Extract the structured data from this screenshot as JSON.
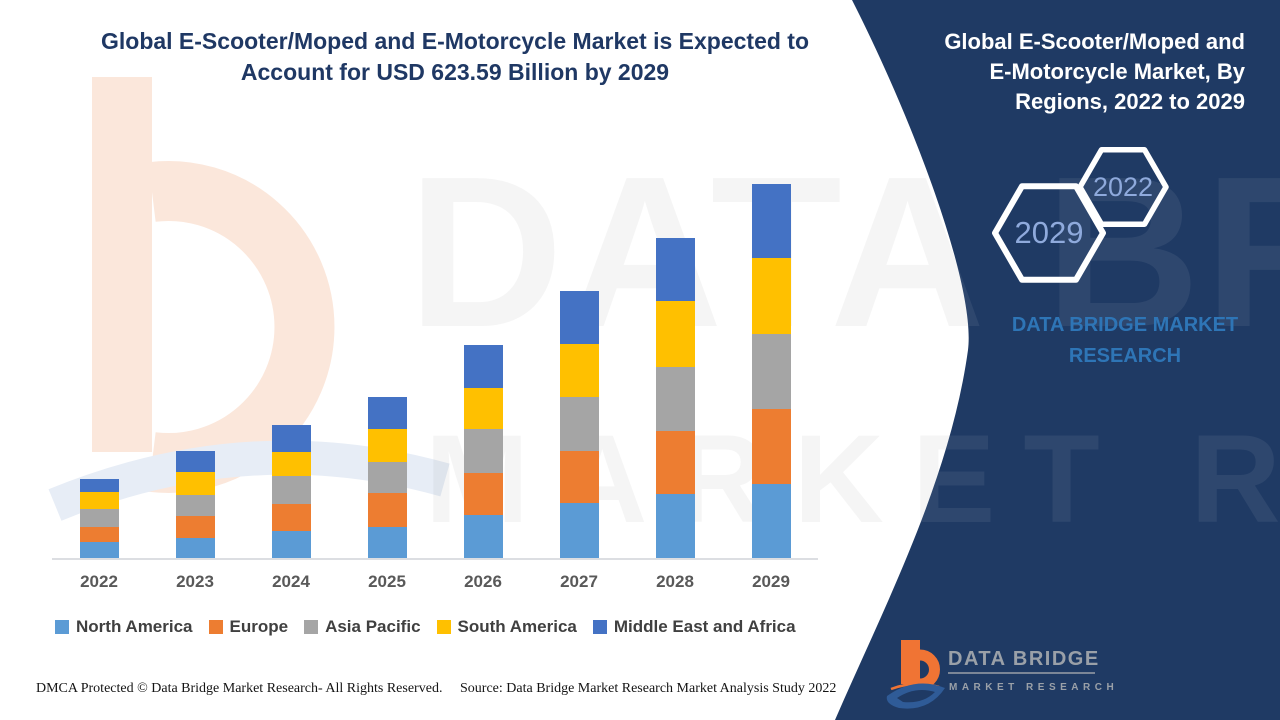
{
  "header": {
    "title_line1": "Global E-Scooter/Moped and E-Motorcycle Market is Expected to",
    "title_line2": "Account for USD 623.59 Billion by 2029"
  },
  "side_panel": {
    "background_color": "#1F3A64",
    "title_lines": [
      "Global E-Scooter/Moped and",
      "E-Motorcycle Market, By",
      "Regions, 2022 to 2029"
    ],
    "hexagons": [
      {
        "label": "2029"
      },
      {
        "label": "2022"
      }
    ],
    "brand_text": "DATA BRIDGE MARKET RESEARCH",
    "logo": {
      "name": "DATA BRIDGE",
      "subname": "MARKET RESEARCH",
      "b_color": "#F07434",
      "swoosh_color": "#2F5B97"
    }
  },
  "chart_data": {
    "type": "bar",
    "stacked": true,
    "title": "Global E-Scooter/Moped and E-Motorcycle Market is Expected to Account for USD 623.59 Billion by 2029",
    "categories": [
      "2022",
      "2023",
      "2024",
      "2025",
      "2026",
      "2027",
      "2028",
      "2029"
    ],
    "series": [
      {
        "name": "North America",
        "color": "#5B9BD5",
        "values": [
          28,
          35,
          46,
          53,
          73,
          93,
          109,
          125
        ]
      },
      {
        "name": "Europe",
        "color": "#ED7D31",
        "values": [
          26,
          37,
          45,
          57,
          70,
          86,
          104,
          125
        ]
      },
      {
        "name": "Asia Pacific",
        "color": "#A5A5A5",
        "values": [
          29,
          35,
          47,
          52,
          73,
          91,
          107,
          125
        ]
      },
      {
        "name": "South America",
        "color": "#FFC000",
        "values": [
          28,
          38,
          40,
          55,
          68,
          88,
          109,
          126
        ]
      },
      {
        "name": "Middle East and Africa",
        "color": "#4472C4",
        "values": [
          23,
          35,
          45,
          53,
          73,
          88,
          105,
          123
        ]
      }
    ],
    "unit": "USD Billion (estimated from bar heights; 2029 total = 623.59)",
    "xlabel": "",
    "ylabel": "",
    "ylim": [
      0,
      650
    ],
    "grid": false,
    "legend_position": "bottom"
  },
  "footer": {
    "dmca": "DMCA Protected © Data Bridge Market Research- All Rights Reserved.",
    "source": "Source: Data Bridge Market Research Market Analysis Study 2022"
  },
  "watermark": {
    "line1": "DATA BRIDGE",
    "line2": "MARKET RESEARCH"
  }
}
